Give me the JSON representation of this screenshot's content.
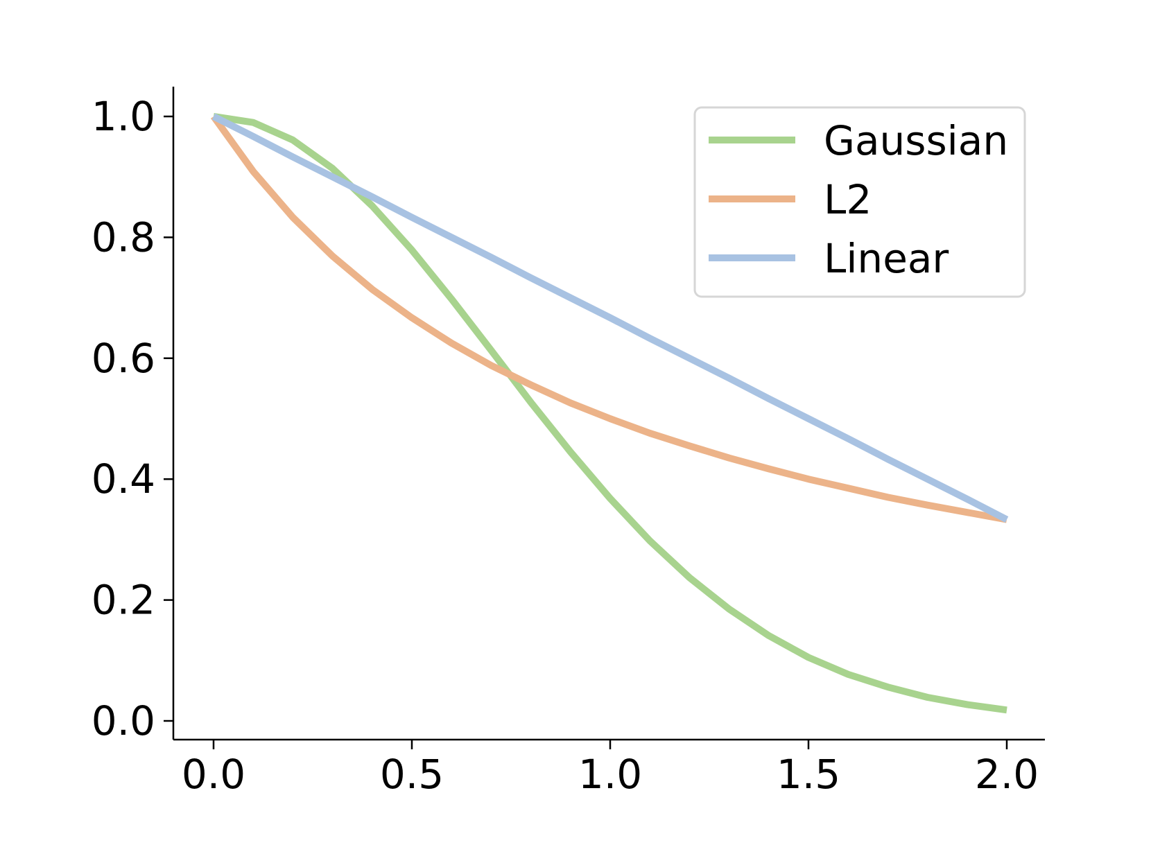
{
  "chart_data": {
    "type": "line",
    "title": "",
    "xlabel": "",
    "ylabel": "",
    "xlim": [
      -0.1,
      2.1
    ],
    "ylim": [
      -0.03,
      1.05
    ],
    "xticks": [
      "0.0",
      "0.5",
      "1.0",
      "1.5",
      "2.0"
    ],
    "yticks": [
      "0.0",
      "0.2",
      "0.4",
      "0.6",
      "0.8",
      "1.0"
    ],
    "x": [
      0.0,
      0.1,
      0.2,
      0.3,
      0.4,
      0.5,
      0.6,
      0.7,
      0.8,
      0.9,
      1.0,
      1.1,
      1.2,
      1.3,
      1.4,
      1.5,
      1.6,
      1.7,
      1.8,
      1.9,
      2.0
    ],
    "series": [
      {
        "name": "Gaussian",
        "color": "#a8d38e",
        "values": [
          1.0,
          0.99,
          0.961,
          0.914,
          0.852,
          0.779,
          0.698,
          0.613,
          0.527,
          0.445,
          0.368,
          0.298,
          0.237,
          0.185,
          0.141,
          0.105,
          0.077,
          0.056,
          0.039,
          0.027,
          0.018
        ]
      },
      {
        "name": "L2",
        "color": "#ecb389",
        "values": [
          1.0,
          0.909,
          0.833,
          0.769,
          0.714,
          0.667,
          0.625,
          0.588,
          0.556,
          0.526,
          0.5,
          0.476,
          0.455,
          0.435,
          0.417,
          0.4,
          0.385,
          0.37,
          0.357,
          0.345,
          0.333
        ]
      },
      {
        "name": "Linear",
        "color": "#a8c2e2",
        "values": [
          1.0,
          0.967,
          0.933,
          0.9,
          0.867,
          0.833,
          0.8,
          0.767,
          0.733,
          0.7,
          0.667,
          0.633,
          0.6,
          0.567,
          0.533,
          0.5,
          0.467,
          0.433,
          0.4,
          0.367,
          0.333
        ]
      }
    ],
    "legend_position": "top-right",
    "grid": false
  }
}
